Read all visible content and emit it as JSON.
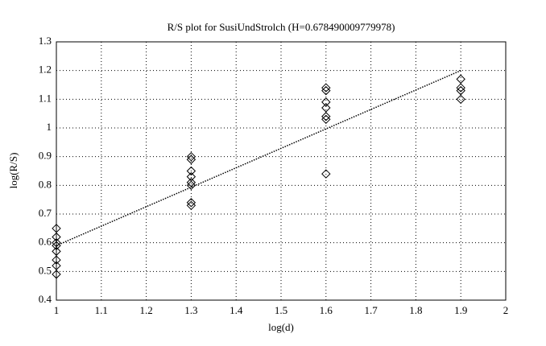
{
  "chart_data": {
    "type": "scatter",
    "title": "R/S plot for SusiUndStrolch (H=0.678490009779978)",
    "x_label": "log(d)",
    "y_label": "log(R/S)",
    "xlim": [
      1,
      2
    ],
    "ylim": [
      0.4,
      1.3
    ],
    "xticks": [
      1,
      1.1,
      1.2,
      1.3,
      1.4,
      1.5,
      1.6,
      1.7,
      1.8,
      1.9,
      2
    ],
    "yticks": [
      0.4,
      0.5,
      0.6,
      0.7,
      0.8,
      0.9,
      1,
      1.1,
      1.2,
      1.3
    ],
    "grid": true,
    "series": [
      {
        "mode": "markers",
        "color": "#000000",
        "x": [
          1,
          1,
          1,
          1,
          1,
          1,
          1,
          1,
          1.3,
          1.3,
          1.3,
          1.3,
          1.3,
          1.3,
          1.3,
          1.3,
          1.6,
          1.6,
          1.6,
          1.6,
          1.6,
          1.6,
          1.6,
          1.9,
          1.9,
          1.9,
          1.9
        ],
        "values": [
          0.65,
          0.62,
          0.6,
          0.59,
          0.57,
          0.54,
          0.52,
          0.49,
          0.9,
          0.89,
          0.85,
          0.83,
          0.81,
          0.8,
          0.74,
          0.73,
          1.14,
          1.13,
          1.09,
          1.07,
          1.04,
          1.03,
          0.84,
          1.17,
          1.14,
          1.13,
          1.1
        ]
      },
      {
        "mode": "line",
        "color": "#000000",
        "x": [
          1,
          1.9
        ],
        "values": [
          0.59,
          1.2
        ]
      }
    ]
  }
}
